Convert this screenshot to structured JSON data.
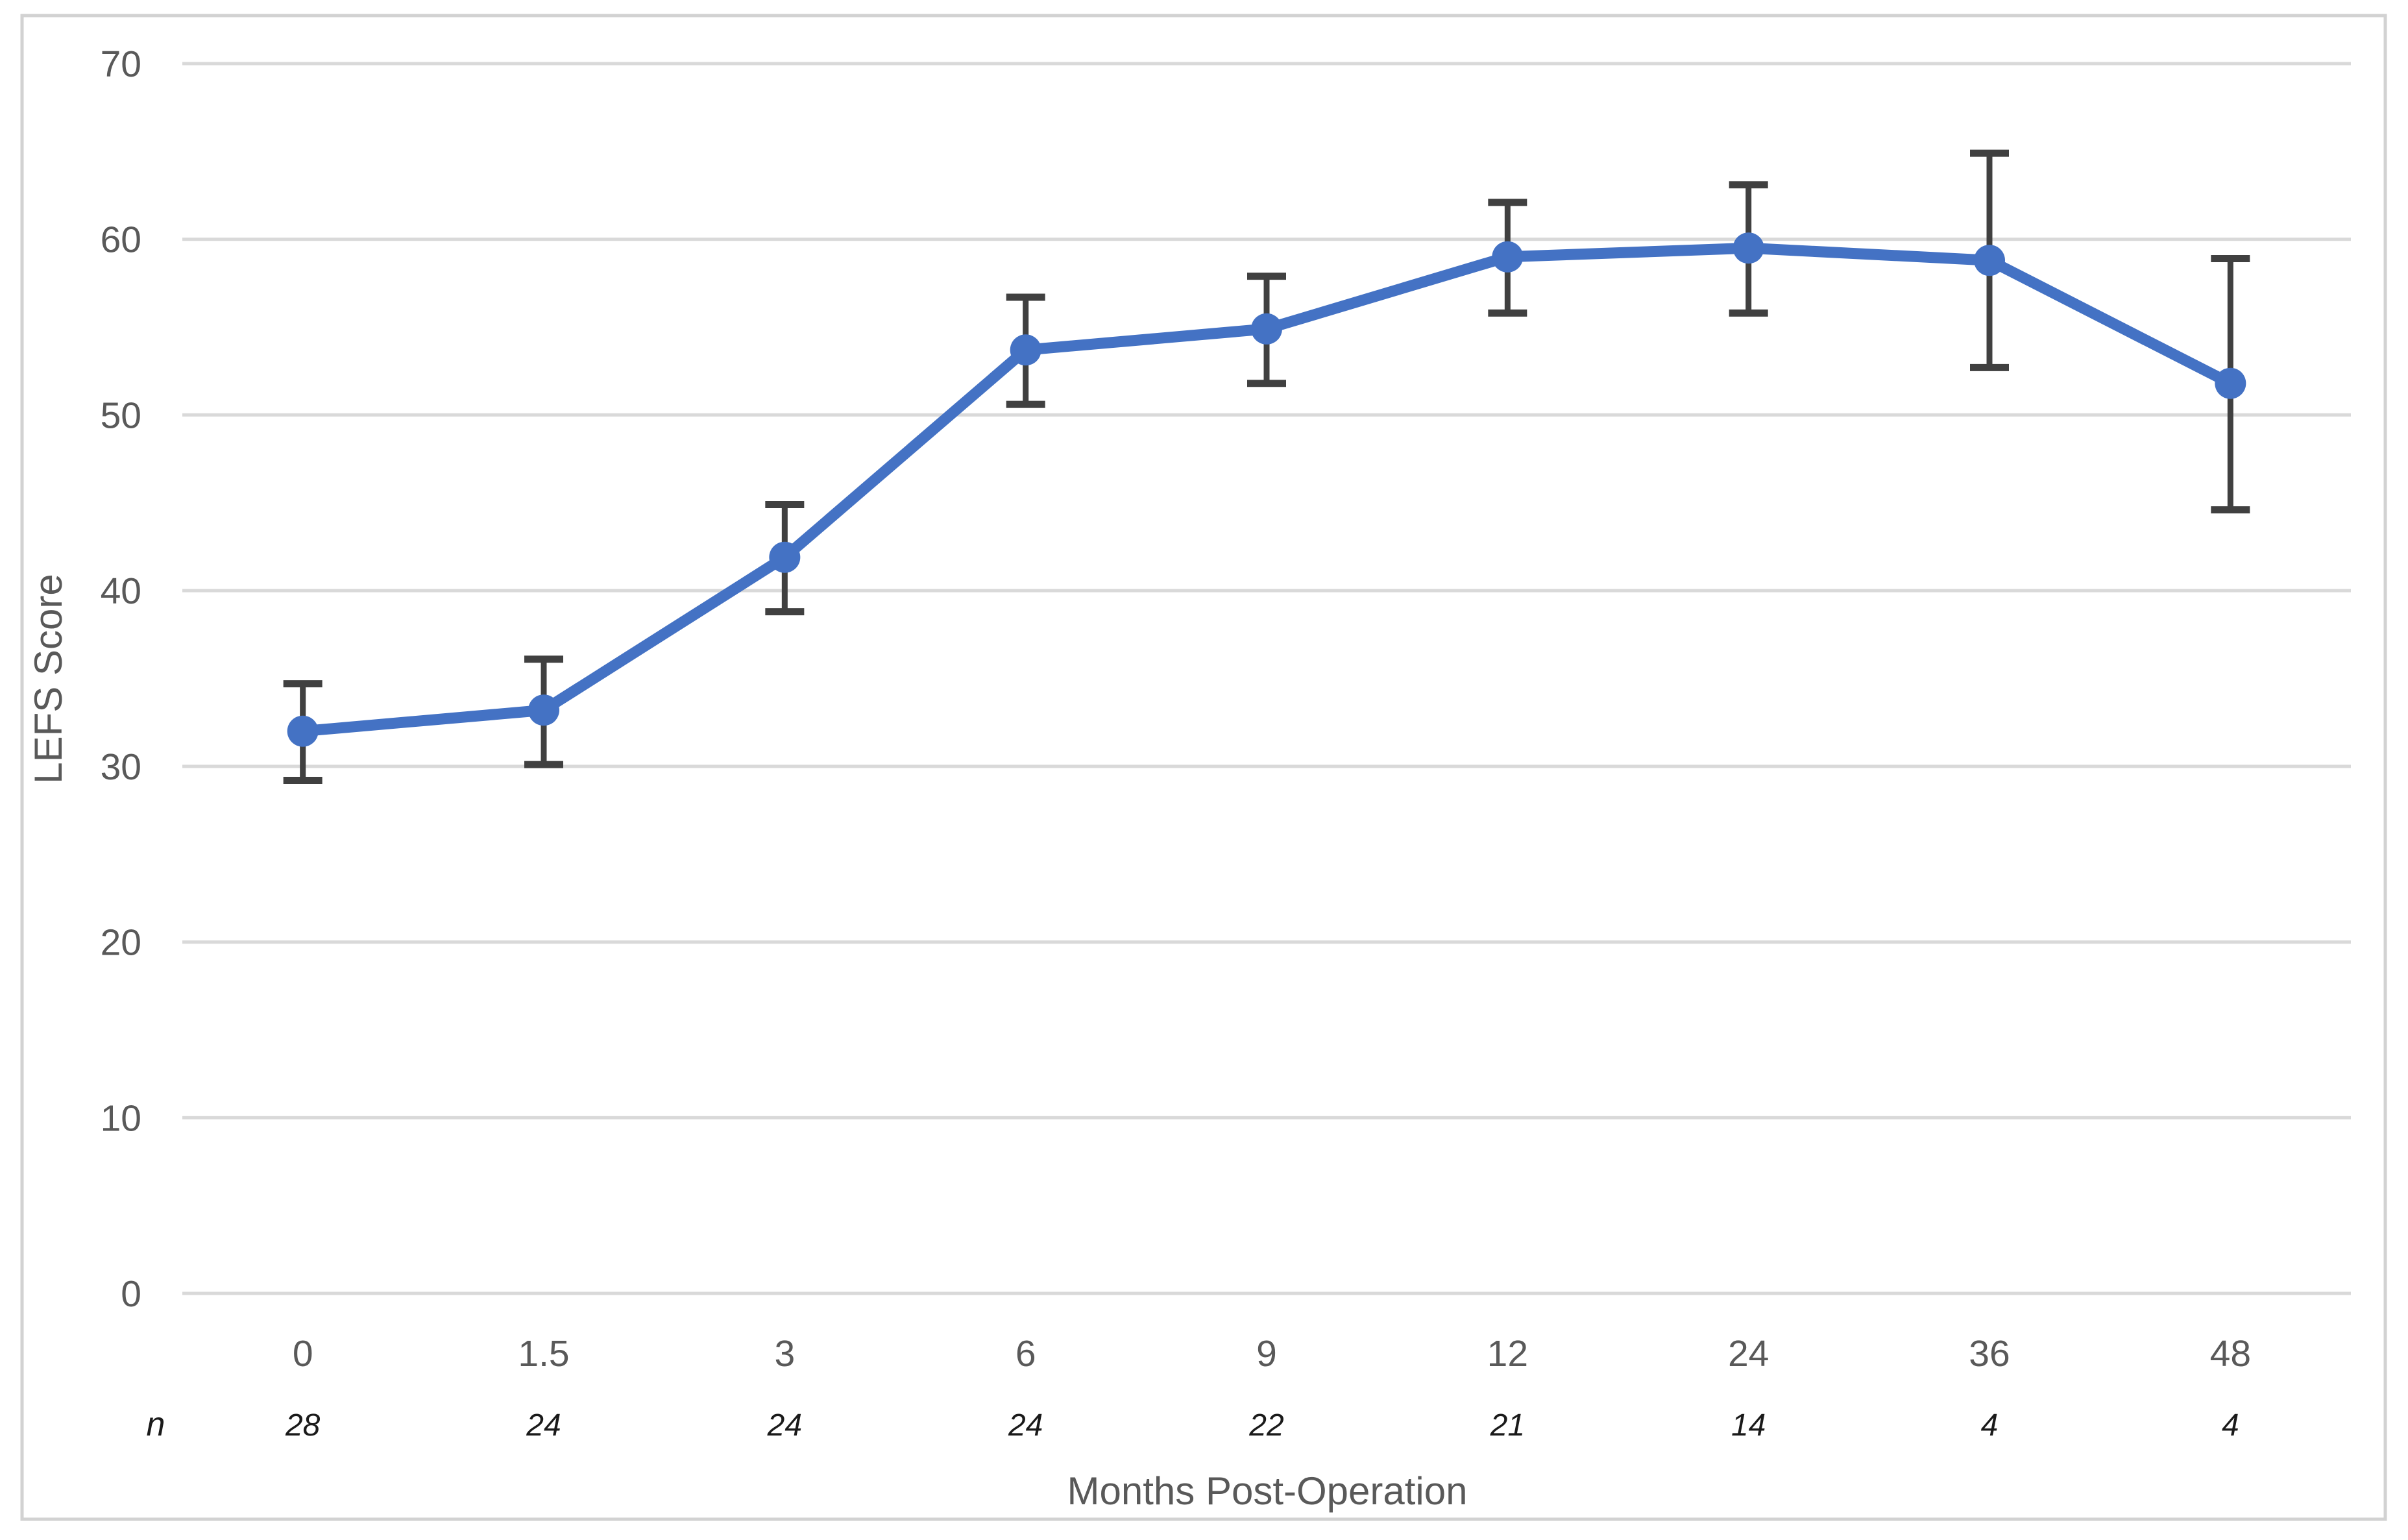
{
  "chart_data": {
    "type": "line",
    "title": "",
    "xlabel": "Months Post-Operation",
    "ylabel": "LEFS Score",
    "x_categories": [
      "0",
      "1.5",
      "3",
      "6",
      "9",
      "12",
      "24",
      "36",
      "48"
    ],
    "n_label": "n",
    "n_values": [
      "28",
      "24",
      "24",
      "24",
      "22",
      "21",
      "14",
      "4",
      "4"
    ],
    "y_ticks": [
      0,
      10,
      20,
      30,
      40,
      50,
      60,
      70
    ],
    "ylim": [
      0,
      70
    ],
    "grid": true,
    "legend": "none",
    "series": [
      {
        "name": "LEFS Score",
        "color": "#4472C4",
        "values": [
          32.0,
          33.2,
          41.9,
          53.7,
          54.9,
          59.0,
          59.5,
          58.8,
          51.8
        ],
        "error_low": [
          29.2,
          30.1,
          38.8,
          50.6,
          51.8,
          55.8,
          55.8,
          52.7,
          44.6
        ],
        "error_high": [
          34.7,
          36.1,
          44.9,
          56.7,
          57.9,
          62.1,
          63.1,
          64.9,
          58.9
        ]
      }
    ],
    "colors": {
      "line": "#4472C4",
      "marker": "#4472C4",
      "error_bar": "#404040",
      "gridline": "#D9D9D9",
      "figure_border": "#D2D2D2",
      "tick_label": "#595959",
      "axis_title": "#595959",
      "n_text": "#1a1a1a",
      "background": "#FFFFFF"
    }
  }
}
